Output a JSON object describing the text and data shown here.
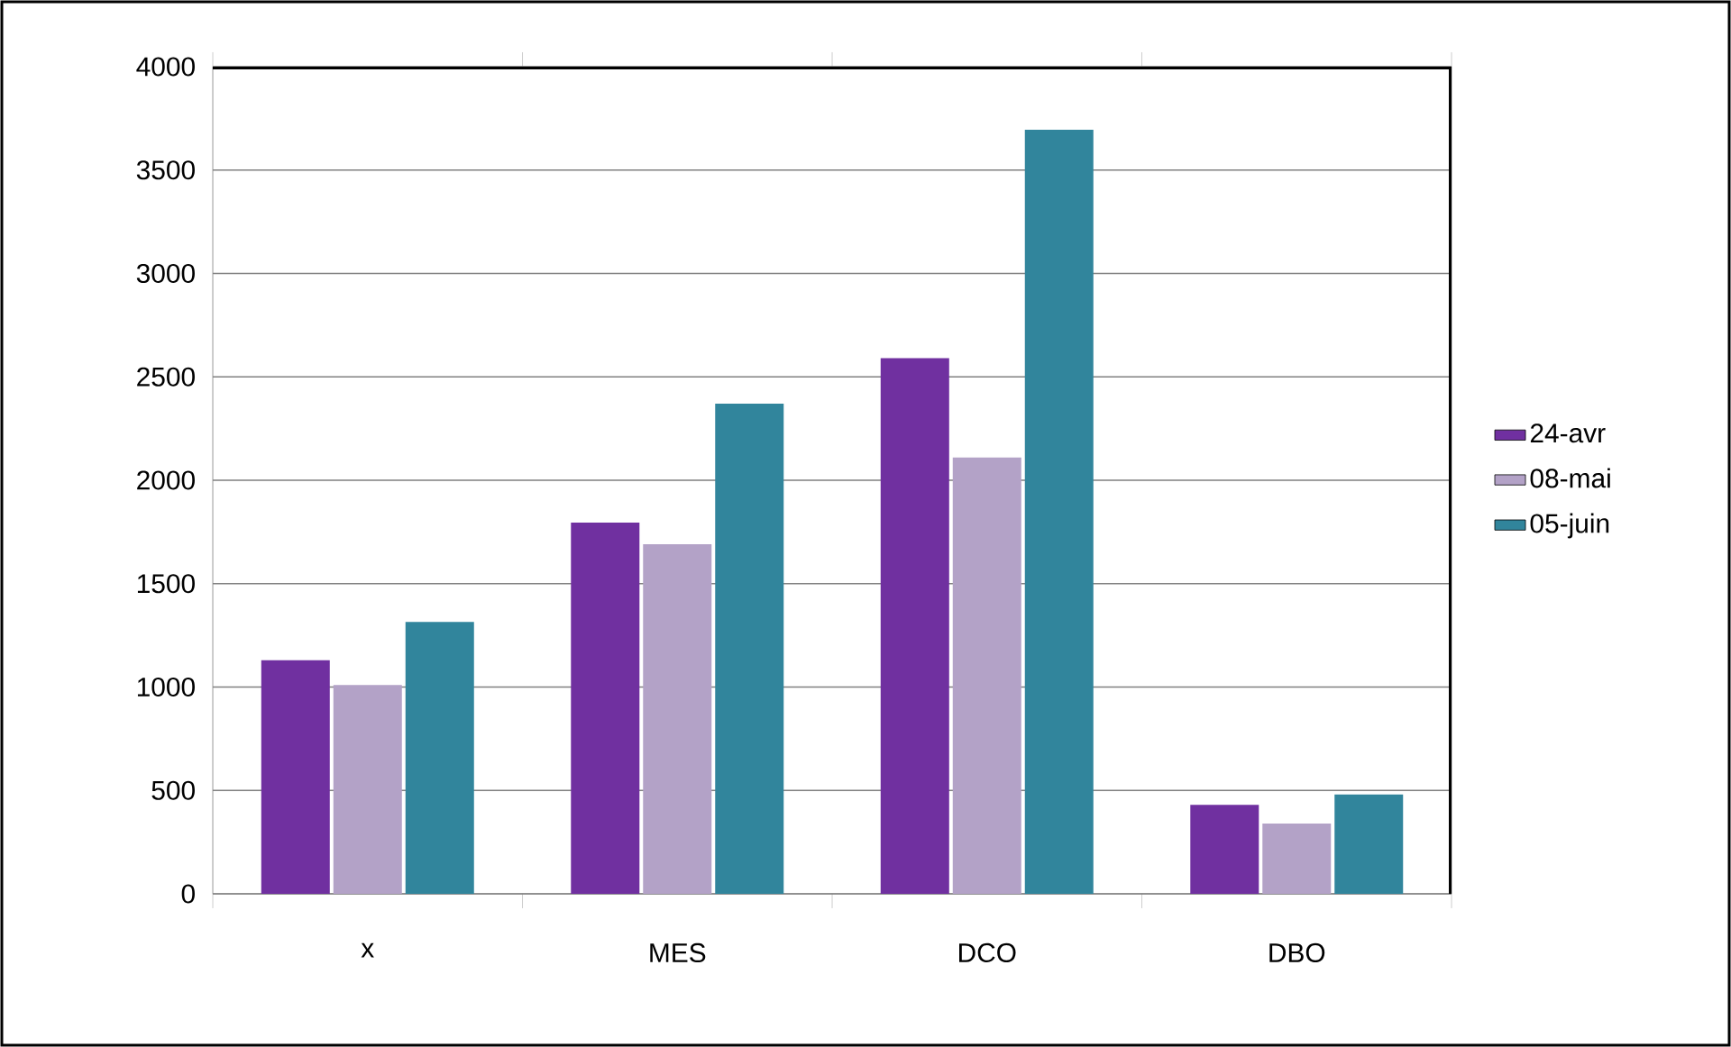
{
  "chart_data": {
    "type": "bar",
    "categories": [
      "x",
      "MES",
      "DCO",
      "DBO"
    ],
    "series": [
      {
        "name": "24-avr",
        "color": "#7030a0",
        "values": [
          1130,
          1795,
          2590,
          430
        ]
      },
      {
        "name": "08-mai",
        "color": "#b3a2c7",
        "values": [
          1010,
          1690,
          2110,
          340
        ]
      },
      {
        "name": "05-juin",
        "color": "#31859c",
        "values": [
          1315,
          2370,
          3695,
          480
        ]
      }
    ],
    "ylim": [
      0,
      4000
    ],
    "yticks": [
      0,
      500,
      1000,
      1500,
      2000,
      2500,
      3000,
      3500,
      4000
    ],
    "grid": "y",
    "legend": "right"
  }
}
